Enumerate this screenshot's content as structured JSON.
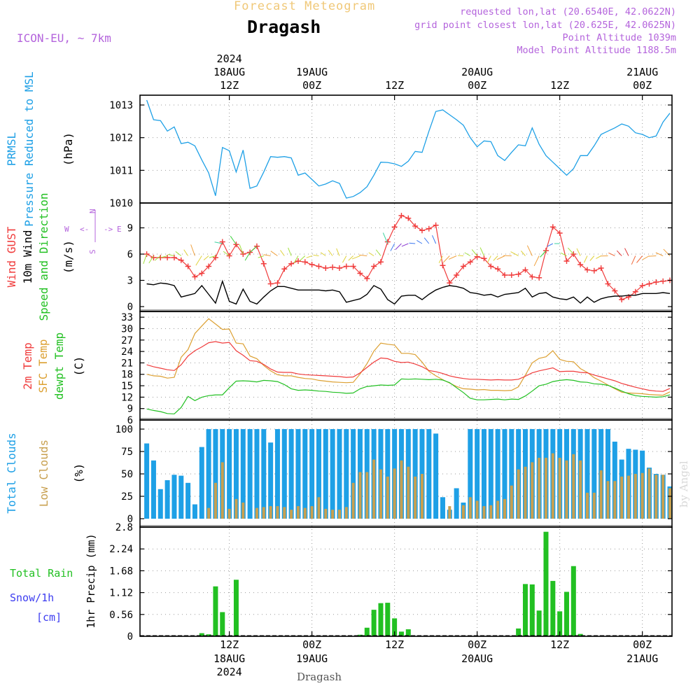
{
  "header": {
    "subtitle": "Forecast Meteogram",
    "location": "Dragash",
    "model": "ICON-EU, ~ 7km",
    "requested": "requested lon,lat (20.6540E, 42.0622N)",
    "grid_point": "grid point closest lon,lat (20.625E, 42.0625N)",
    "point_altitude": "Point Altitude 1039m",
    "model_point_altitude": "Model Point Altitude 1188.5m",
    "credit": "by Angel",
    "footer_location": "Dragash"
  },
  "time_axis": {
    "year": "2024",
    "ticks": [
      {
        "h": 12,
        "top": "18AUG",
        "bot": "12Z"
      },
      {
        "h": 24,
        "top": "19AUG",
        "bot": "00Z"
      },
      {
        "h": 36,
        "top": "",
        "bot": "12Z"
      },
      {
        "h": 48,
        "top": "20AUG",
        "bot": "00Z"
      },
      {
        "h": 60,
        "top": "",
        "bot": "12Z"
      },
      {
        "h": 72,
        "top": "21AUG",
        "bot": "00Z"
      }
    ],
    "bottom_ticks": [
      {
        "h": 12,
        "top": "12Z",
        "bot": "18AUG"
      },
      {
        "h": 24,
        "top": "00Z",
        "bot": "19AUG"
      },
      {
        "h": 36,
        "top": "12Z",
        "bot": ""
      },
      {
        "h": 48,
        "top": "00Z",
        "bot": "20AUG"
      },
      {
        "h": 60,
        "top": "12Z",
        "bot": ""
      },
      {
        "h": 72,
        "top": "00Z",
        "bot": "21AUG"
      }
    ],
    "start_hour": 0,
    "end_hour": 77
  },
  "colors": {
    "pressure": "#1ea0e6",
    "gust": "#f03c3c",
    "wind": "#000000",
    "arrows_label": "#22c022",
    "temp2m": "#f03c3c",
    "sfc": "#dca032",
    "dew": "#22c022",
    "total_clouds": "#1ea0e6",
    "low_clouds": "#c8a050",
    "rain": "#22c022",
    "snow": "#3c3cf0",
    "header_location": "#000000",
    "subtitle": "#f0c878",
    "info": "#b464dc"
  },
  "chart_data": [
    {
      "type": "line",
      "panel": "pressure",
      "ylabel_lines": [
        "PRMSL",
        "Pressure Reduced to MSL"
      ],
      "unit": "(hPa)",
      "yticks": [
        "1013",
        "1012",
        "1011",
        "1010"
      ],
      "ylim": [
        1010,
        1013.3
      ],
      "series": [
        {
          "name": "PRMSL",
          "values": [
            1013.15,
            1012.55,
            1012.52,
            1012.2,
            1012.33,
            1011.82,
            1011.86,
            1011.75,
            1011.32,
            1010.92,
            1010.22,
            1011.7,
            1011.6,
            1010.95,
            1011.62,
            1010.45,
            1010.52,
            1010.95,
            1011.42,
            1011.4,
            1011.42,
            1011.38,
            1010.85,
            1010.92,
            1010.72,
            1010.52,
            1010.58,
            1010.68,
            1010.6,
            1010.15,
            1010.2,
            1010.32,
            1010.5,
            1010.85,
            1011.25,
            1011.24,
            1011.2,
            1011.12,
            1011.28,
            1011.58,
            1011.55,
            1012.2,
            1012.8,
            1012.85,
            1012.7,
            1012.55,
            1012.38,
            1012.0,
            1011.72,
            1011.9,
            1011.88,
            1011.45,
            1011.3,
            1011.55,
            1011.78,
            1011.75,
            1012.3,
            1011.8,
            1011.45,
            1011.25,
            1011.05,
            1010.85,
            1011.05,
            1011.45,
            1011.45,
            1011.75,
            1012.1,
            1012.2,
            1012.3,
            1012.42,
            1012.35,
            1012.15,
            1012.1,
            1012.0,
            1012.05,
            1012.48,
            1012.75
          ]
        }
      ]
    },
    {
      "type": "line",
      "panel": "wind",
      "ylabel_lines": [
        "Wind GUST",
        "10m Wind",
        "Speed and Direction"
      ],
      "unit": "(m/s)",
      "compass": {
        "n": "N",
        "s": "S",
        "e": "E",
        "w": "W"
      },
      "yticks": [
        "9",
        "6",
        "3",
        "0"
      ],
      "ylim": [
        0,
        11.2
      ],
      "series": [
        {
          "name": "Wind GUST",
          "values": [
            6.0,
            5.6,
            5.6,
            5.6,
            5.6,
            5.3,
            4.6,
            3.4,
            3.8,
            4.6,
            5.6,
            7.4,
            5.8,
            7.1,
            6.0,
            6.2,
            6.9,
            4.9,
            2.6,
            2.7,
            4.3,
            4.9,
            5.2,
            5.1,
            4.8,
            4.6,
            4.4,
            4.5,
            4.4,
            4.6,
            4.6,
            3.8,
            3.2,
            4.6,
            5.1,
            7.4,
            9.1,
            10.4,
            10.1,
            9.2,
            8.7,
            8.9,
            9.3,
            4.7,
            2.7,
            3.6,
            4.6,
            5.1,
            5.7,
            5.5,
            4.6,
            4.3,
            3.6,
            3.6,
            3.7,
            4.2,
            3.4,
            3.3,
            6.4,
            9.1,
            8.4,
            5.2,
            6.0,
            4.8,
            4.2,
            4.1,
            4.4,
            2.6,
            1.8,
            0.8,
            1.1,
            1.7,
            2.4,
            2.6,
            2.8,
            2.9,
            3.0
          ]
        },
        {
          "name": "10m Wind",
          "values": [
            2.6,
            2.5,
            2.7,
            2.6,
            2.4,
            1.1,
            1.3,
            1.5,
            2.4,
            1.4,
            0.4,
            2.9,
            0.6,
            0.3,
            2.0,
            0.6,
            0.3,
            1.1,
            1.8,
            2.3,
            2.3,
            2.1,
            1.9,
            1.9,
            1.9,
            1.9,
            1.8,
            1.9,
            1.7,
            0.5,
            0.7,
            0.9,
            1.4,
            2.4,
            2.0,
            0.8,
            0.3,
            1.2,
            1.3,
            1.3,
            0.8,
            1.4,
            1.9,
            2.2,
            2.4,
            2.3,
            2.1,
            1.6,
            1.5,
            1.3,
            1.4,
            1.1,
            1.4,
            1.5,
            1.6,
            2.1,
            1.1,
            1.5,
            1.6,
            1.1,
            0.9,
            0.8,
            1.1,
            0.4,
            1.1,
            0.5,
            0.9,
            1.1,
            1.2,
            1.2,
            1.3,
            1.3,
            1.5,
            1.5,
            1.5,
            1.6,
            1.5
          ]
        }
      ]
    },
    {
      "type": "line",
      "panel": "temperature",
      "ylabel_lines": [
        "2m Temp",
        "SFC Temp",
        "dewpt Temp"
      ],
      "unit": "(C)",
      "yticks": [
        "33",
        "30",
        "27",
        "24",
        "21",
        "18",
        "15",
        "12",
        "9",
        "6"
      ],
      "ylim": [
        6,
        34.5
      ],
      "series": [
        {
          "name": "2m Temp",
          "values": [
            20.5,
            20.0,
            19.6,
            19.2,
            19.0,
            20.5,
            22.8,
            24.2,
            25.2,
            26.3,
            26.6,
            26.2,
            26.4,
            24.2,
            23.0,
            21.6,
            21.4,
            20.6,
            19.4,
            18.6,
            18.5,
            18.5,
            18.1,
            17.9,
            17.8,
            17.7,
            17.6,
            17.5,
            17.4,
            17.2,
            17.3,
            18.4,
            19.8,
            21.2,
            22.3,
            22.1,
            21.4,
            21.1,
            21.2,
            20.7,
            20.0,
            19.0,
            18.7,
            18.2,
            17.6,
            17.2,
            16.9,
            16.7,
            16.7,
            16.6,
            16.5,
            16.6,
            16.5,
            16.5,
            16.7,
            17.5,
            18.4,
            18.9,
            19.3,
            19.7,
            18.7,
            18.8,
            18.8,
            18.5,
            18.4,
            17.8,
            17.3,
            16.8,
            16.3,
            15.6,
            15.1,
            14.6,
            14.2,
            13.8,
            13.6,
            13.5,
            14.3
          ]
        },
        {
          "name": "SFC Temp",
          "values": [
            18.0,
            17.6,
            17.5,
            17.0,
            17.2,
            22.5,
            24.5,
            28.7,
            30.7,
            32.6,
            31.2,
            29.8,
            29.9,
            26.2,
            26.0,
            22.8,
            22.1,
            20.3,
            18.9,
            17.9,
            17.6,
            17.6,
            17.2,
            16.9,
            16.8,
            16.4,
            16.2,
            16.0,
            15.9,
            15.8,
            15.9,
            18.1,
            20.8,
            24.1,
            26.2,
            25.9,
            25.7,
            23.5,
            23.5,
            23.2,
            21.2,
            18.8,
            17.6,
            16.6,
            15.7,
            14.8,
            14.2,
            14.1,
            13.9,
            14.0,
            13.8,
            13.8,
            13.7,
            13.8,
            14.7,
            17.8,
            21.0,
            22.2,
            22.6,
            24.2,
            21.9,
            21.4,
            21.3,
            19.5,
            18.5,
            17.1,
            16.2,
            15.2,
            14.2,
            13.3,
            13.1,
            13.0,
            12.9,
            12.7,
            12.6,
            12.5,
            13.4
          ]
        },
        {
          "name": "dewpt Temp",
          "values": [
            8.9,
            8.5,
            8.2,
            7.7,
            7.6,
            9.3,
            12.2,
            11.1,
            12.0,
            12.4,
            12.6,
            12.6,
            14.5,
            16.2,
            16.3,
            16.2,
            16.0,
            16.4,
            16.3,
            16.1,
            15.3,
            14.2,
            13.8,
            13.9,
            13.8,
            13.6,
            13.5,
            13.3,
            13.2,
            13.0,
            13.1,
            14.2,
            14.8,
            15.0,
            15.2,
            15.1,
            15.2,
            16.8,
            16.7,
            16.8,
            16.7,
            16.6,
            16.7,
            16.5,
            15.8,
            14.5,
            13.2,
            11.7,
            11.3,
            11.3,
            11.4,
            11.5,
            11.3,
            11.5,
            11.4,
            12.3,
            13.6,
            15.0,
            15.4,
            16.1,
            16.4,
            16.6,
            16.4,
            16.0,
            15.9,
            15.5,
            15.4,
            15.1,
            14.4,
            13.6,
            12.9,
            12.4,
            12.2,
            12.1,
            12.0,
            12.1,
            12.6
          ]
        }
      ]
    },
    {
      "type": "bar",
      "panel": "clouds",
      "ylabel_lines": [
        "Total Clouds",
        "Low Clouds"
      ],
      "unit": "(%)",
      "yticks": [
        "100",
        "75",
        "50",
        "25",
        "0"
      ],
      "ylim": [
        0,
        100
      ],
      "series": [
        {
          "name": "Total Clouds",
          "values": [
            84,
            65,
            33,
            43,
            49,
            48,
            40,
            16,
            80,
            100,
            100,
            100,
            100,
            100,
            100,
            100,
            100,
            100,
            85,
            100,
            100,
            100,
            100,
            100,
            100,
            100,
            100,
            100,
            100,
            100,
            100,
            100,
            100,
            100,
            100,
            100,
            100,
            100,
            100,
            100,
            100,
            100,
            95,
            24,
            10,
            34,
            18,
            100,
            100,
            100,
            100,
            100,
            100,
            100,
            100,
            100,
            100,
            100,
            100,
            100,
            100,
            100,
            100,
            100,
            100,
            100,
            100,
            100,
            86,
            66,
            78,
            77,
            76,
            57,
            50,
            49,
            36
          ]
        },
        {
          "name": "Low Clouds",
          "values": [
            0,
            0,
            0,
            0,
            0,
            0,
            0,
            0,
            0,
            12,
            40,
            63,
            11,
            22,
            18,
            0,
            12,
            13,
            14,
            14,
            13,
            10,
            14,
            12,
            14,
            24,
            11,
            10,
            10,
            13,
            40,
            52,
            52,
            66,
            55,
            47,
            56,
            65,
            58,
            47,
            50,
            0,
            0,
            0,
            14,
            0,
            15,
            24,
            20,
            14,
            15,
            20,
            22,
            37,
            55,
            58,
            63,
            68,
            68,
            73,
            68,
            65,
            72,
            65,
            29,
            29,
            54,
            42,
            42,
            47,
            48,
            50,
            51,
            56,
            49,
            49,
            34
          ]
        }
      ]
    },
    {
      "type": "bar",
      "panel": "precipitation",
      "ylabel_lines": [
        "Total  Rain",
        "Snow/1h",
        "[cm]"
      ],
      "axis_label": "1hr Precip (mm)",
      "unit": "",
      "yticks": [
        "2.8",
        "2.24",
        "1.68",
        "1.12",
        "0.56",
        "0"
      ],
      "ylim": [
        0,
        2.8
      ],
      "series": [
        {
          "name": "Total Rain",
          "values": [
            0,
            0,
            0,
            0,
            0,
            0,
            0,
            0,
            0.08,
            0.05,
            1.28,
            0.62,
            0,
            1.45,
            0,
            0,
            0,
            0,
            0,
            0,
            0,
            0,
            0,
            0,
            0,
            0,
            0,
            0,
            0,
            0,
            0,
            0.04,
            0.22,
            0.68,
            0.85,
            0.86,
            0.46,
            0.12,
            0.18,
            0,
            0,
            0,
            0,
            0,
            0,
            0,
            0,
            0,
            0,
            0,
            0,
            0,
            0,
            0,
            0.2,
            1.34,
            1.33,
            0.66,
            2.68,
            1.42,
            0.64,
            1.14,
            1.8,
            0.06,
            0,
            0,
            0,
            0,
            0,
            0,
            0,
            0,
            0,
            0,
            0,
            0,
            0
          ]
        }
      ]
    }
  ]
}
